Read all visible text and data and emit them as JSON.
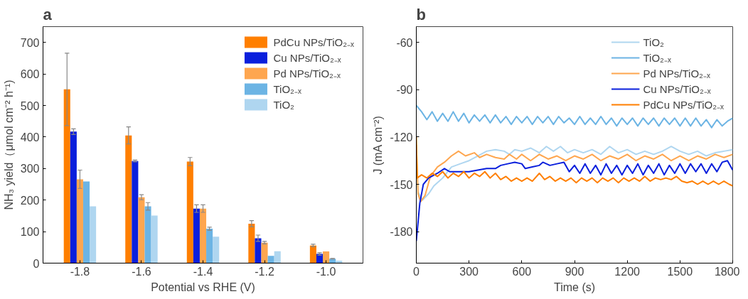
{
  "chart_data": [
    {
      "type": "bar",
      "title": "a",
      "xlabel": "Potential vs RHE (V)",
      "ylabel": "NH₃ yield（μmol cm⁻² h⁻¹)",
      "categories": [
        "-1.8",
        "-1.6",
        "-1.4",
        "-1.2",
        "-1.0"
      ],
      "ylim": [
        0,
        750
      ],
      "yticks": [
        0,
        100,
        200,
        300,
        400,
        500,
        600,
        700
      ],
      "grid": false,
      "legend": "top right",
      "series": [
        {
          "name": "PdCu NPs/TiO₂₋ₓ",
          "color": "#ff7f00",
          "values": [
            551,
            405,
            322,
            125,
            56
          ],
          "errors": [
            115,
            27,
            13,
            10,
            4
          ]
        },
        {
          "name": "Cu NPs/TiO₂₋ₓ",
          "color": "#0a1fdc",
          "values": [
            417,
            324,
            173,
            79,
            29
          ],
          "errors": [
            9,
            3,
            12,
            10,
            4
          ]
        },
        {
          "name": "Pd NPs/TiO₂₋ₓ",
          "color": "#fea64f",
          "values": [
            266,
            209,
            173,
            65,
            37
          ],
          "errors": [
            29,
            8,
            12,
            4,
            null
          ]
        },
        {
          "name": "TiO₂₋ₓ",
          "color": "#6cb4e4",
          "values": [
            259,
            180,
            109,
            23,
            14
          ],
          "errors": [
            null,
            12,
            5,
            null,
            1
          ]
        },
        {
          "name": "TiO₂",
          "color": "#afd6f0",
          "values": [
            180,
            151,
            84,
            38,
            8
          ]
        }
      ]
    },
    {
      "type": "line",
      "title": "b",
      "xlabel": "Time (s)",
      "ylabel": "J (mA cm⁻²)",
      "xlim": [
        0,
        1800
      ],
      "xticks": [
        0,
        300,
        600,
        900,
        1200,
        1500,
        1800
      ],
      "ylim": [
        -200,
        -50
      ],
      "yticks": [
        -180,
        -150,
        -120,
        -90,
        -60
      ],
      "grid": false,
      "legend": "top right",
      "marker": "none",
      "line_style": "solid",
      "series": [
        {
          "name": "TiO₂",
          "color": "#afd6f0",
          "x": [
            10,
            35,
            70,
            100,
            150,
            200,
            250,
            300,
            350,
            400,
            450,
            500,
            530,
            560,
            600,
            650,
            700,
            740,
            780,
            820,
            860,
            900,
            950,
            1000,
            1050,
            1100,
            1150,
            1200,
            1250,
            1300,
            1350,
            1400,
            1450,
            1500,
            1550,
            1600,
            1650,
            1700,
            1750,
            1800
          ],
          "values": [
            -155,
            -160,
            -156,
            -151,
            -146,
            -139,
            -137,
            -135,
            -132,
            -129,
            -128,
            -129,
            -131,
            -128,
            -129,
            -127,
            -130,
            -126,
            -129,
            -126,
            -130,
            -128,
            -130,
            -128,
            -131,
            -126,
            -130,
            -128,
            -131,
            -129,
            -131,
            -129,
            -126,
            -129,
            -131,
            -129,
            -132,
            -130,
            -129,
            -128
          ]
        },
        {
          "name": "TiO₂₋ₓ",
          "color": "#6cb4e4",
          "x": [
            0,
            30,
            60,
            90,
            120,
            150,
            180,
            210,
            240,
            270,
            300,
            330,
            360,
            390,
            420,
            450,
            480,
            510,
            540,
            570,
            600,
            630,
            660,
            690,
            720,
            750,
            780,
            810,
            840,
            870,
            900,
            930,
            960,
            990,
            1020,
            1050,
            1080,
            1110,
            1140,
            1170,
            1200,
            1230,
            1260,
            1290,
            1320,
            1350,
            1380,
            1410,
            1440,
            1470,
            1500,
            1530,
            1560,
            1590,
            1620,
            1650,
            1680,
            1710,
            1740,
            1770,
            1800
          ],
          "values": [
            -100,
            -104,
            -109,
            -104,
            -110,
            -105,
            -110,
            -104,
            -110,
            -105,
            -111,
            -106,
            -110,
            -106,
            -111,
            -106,
            -111,
            -107,
            -112,
            -107,
            -111,
            -107,
            -112,
            -107,
            -111,
            -107,
            -112,
            -107,
            -111,
            -108,
            -112,
            -107,
            -112,
            -108,
            -112,
            -107,
            -112,
            -108,
            -113,
            -108,
            -112,
            -108,
            -113,
            -108,
            -112,
            -108,
            -113,
            -108,
            -112,
            -108,
            -113,
            -108,
            -113,
            -108,
            -113,
            -109,
            -114,
            -109,
            -113,
            -110,
            -108
          ]
        },
        {
          "name": "Pd NPs/TiO₂₋ₓ",
          "color": "#fea64f",
          "x": [
            0,
            10,
            25,
            50,
            80,
            120,
            160,
            200,
            240,
            280,
            330,
            360,
            400,
            450,
            500,
            530,
            570,
            600,
            650,
            700,
            750,
            800,
            850,
            900,
            950,
            1000,
            1050,
            1100,
            1150,
            1200,
            1250,
            1300,
            1350,
            1400,
            1450,
            1500,
            1550,
            1600,
            1650,
            1700,
            1750,
            1800
          ],
          "values": [
            -125,
            -156,
            -161,
            -157,
            -145,
            -139,
            -136,
            -132,
            -129,
            -132,
            -130,
            -133,
            -131,
            -133,
            -134,
            -131,
            -134,
            -131,
            -135,
            -131,
            -134,
            -132,
            -135,
            -132,
            -134,
            -131,
            -135,
            -132,
            -134,
            -131,
            -135,
            -132,
            -134,
            -131,
            -135,
            -132,
            -135,
            -132,
            -134,
            -131,
            -133,
            -131
          ]
        },
        {
          "name": "Cu NPs/TiO₂₋ₓ",
          "color": "#0a1fdc",
          "x": [
            0,
            20,
            40,
            70,
            120,
            160,
            190,
            250,
            300,
            350,
            400,
            450,
            480,
            520,
            560,
            600,
            620,
            660,
            700,
            720,
            760,
            800,
            840,
            870,
            900,
            930,
            960,
            990,
            1020,
            1050,
            1080,
            1110,
            1140,
            1170,
            1200,
            1230,
            1260,
            1290,
            1320,
            1350,
            1380,
            1410,
            1440,
            1470,
            1500,
            1530,
            1560,
            1590,
            1620,
            1650,
            1680,
            1710,
            1740,
            1770,
            1800
          ],
          "values": [
            -186,
            -162,
            -150,
            -146,
            -143,
            -140,
            -142,
            -142,
            -142,
            -141,
            -140,
            -140,
            -138,
            -137,
            -136,
            -137,
            -140,
            -139,
            -138,
            -136,
            -138,
            -137,
            -136,
            -142,
            -138,
            -143,
            -137,
            -143,
            -138,
            -144,
            -137,
            -143,
            -138,
            -144,
            -138,
            -143,
            -137,
            -144,
            -138,
            -143,
            -137,
            -144,
            -138,
            -143,
            -137,
            -143,
            -137,
            -142,
            -137,
            -143,
            -137,
            -142,
            -136,
            -135,
            -141
          ]
        },
        {
          "name": "PdCu NPs/TiO₂₋ₓ",
          "color": "#ff7f00",
          "x": [
            0,
            5,
            30,
            60,
            90,
            120,
            150,
            180,
            210,
            240,
            270,
            300,
            330,
            360,
            390,
            420,
            450,
            480,
            510,
            540,
            570,
            600,
            630,
            660,
            700,
            730,
            760,
            790,
            820,
            850,
            880,
            910,
            940,
            970,
            1000,
            1030,
            1060,
            1090,
            1120,
            1150,
            1180,
            1210,
            1240,
            1270,
            1300,
            1330,
            1360,
            1390,
            1420,
            1450,
            1480,
            1510,
            1540,
            1570,
            1600,
            1630,
            1660,
            1690,
            1720,
            1750,
            1780,
            1800
          ],
          "values": [
            -120,
            -146,
            -144,
            -146,
            -143,
            -145,
            -142,
            -146,
            -143,
            -145,
            -142,
            -146,
            -143,
            -145,
            -142,
            -146,
            -143,
            -147,
            -145,
            -148,
            -146,
            -148,
            -146,
            -148,
            -143,
            -147,
            -145,
            -148,
            -146,
            -148,
            -146,
            -149,
            -146,
            -148,
            -146,
            -149,
            -146,
            -148,
            -146,
            -149,
            -146,
            -148,
            -146,
            -148,
            -145,
            -148,
            -146,
            -147,
            -146,
            -147,
            -145,
            -148,
            -149,
            -148,
            -150,
            -148,
            -150,
            -148,
            -150,
            -148,
            -150,
            -151
          ]
        }
      ]
    }
  ]
}
